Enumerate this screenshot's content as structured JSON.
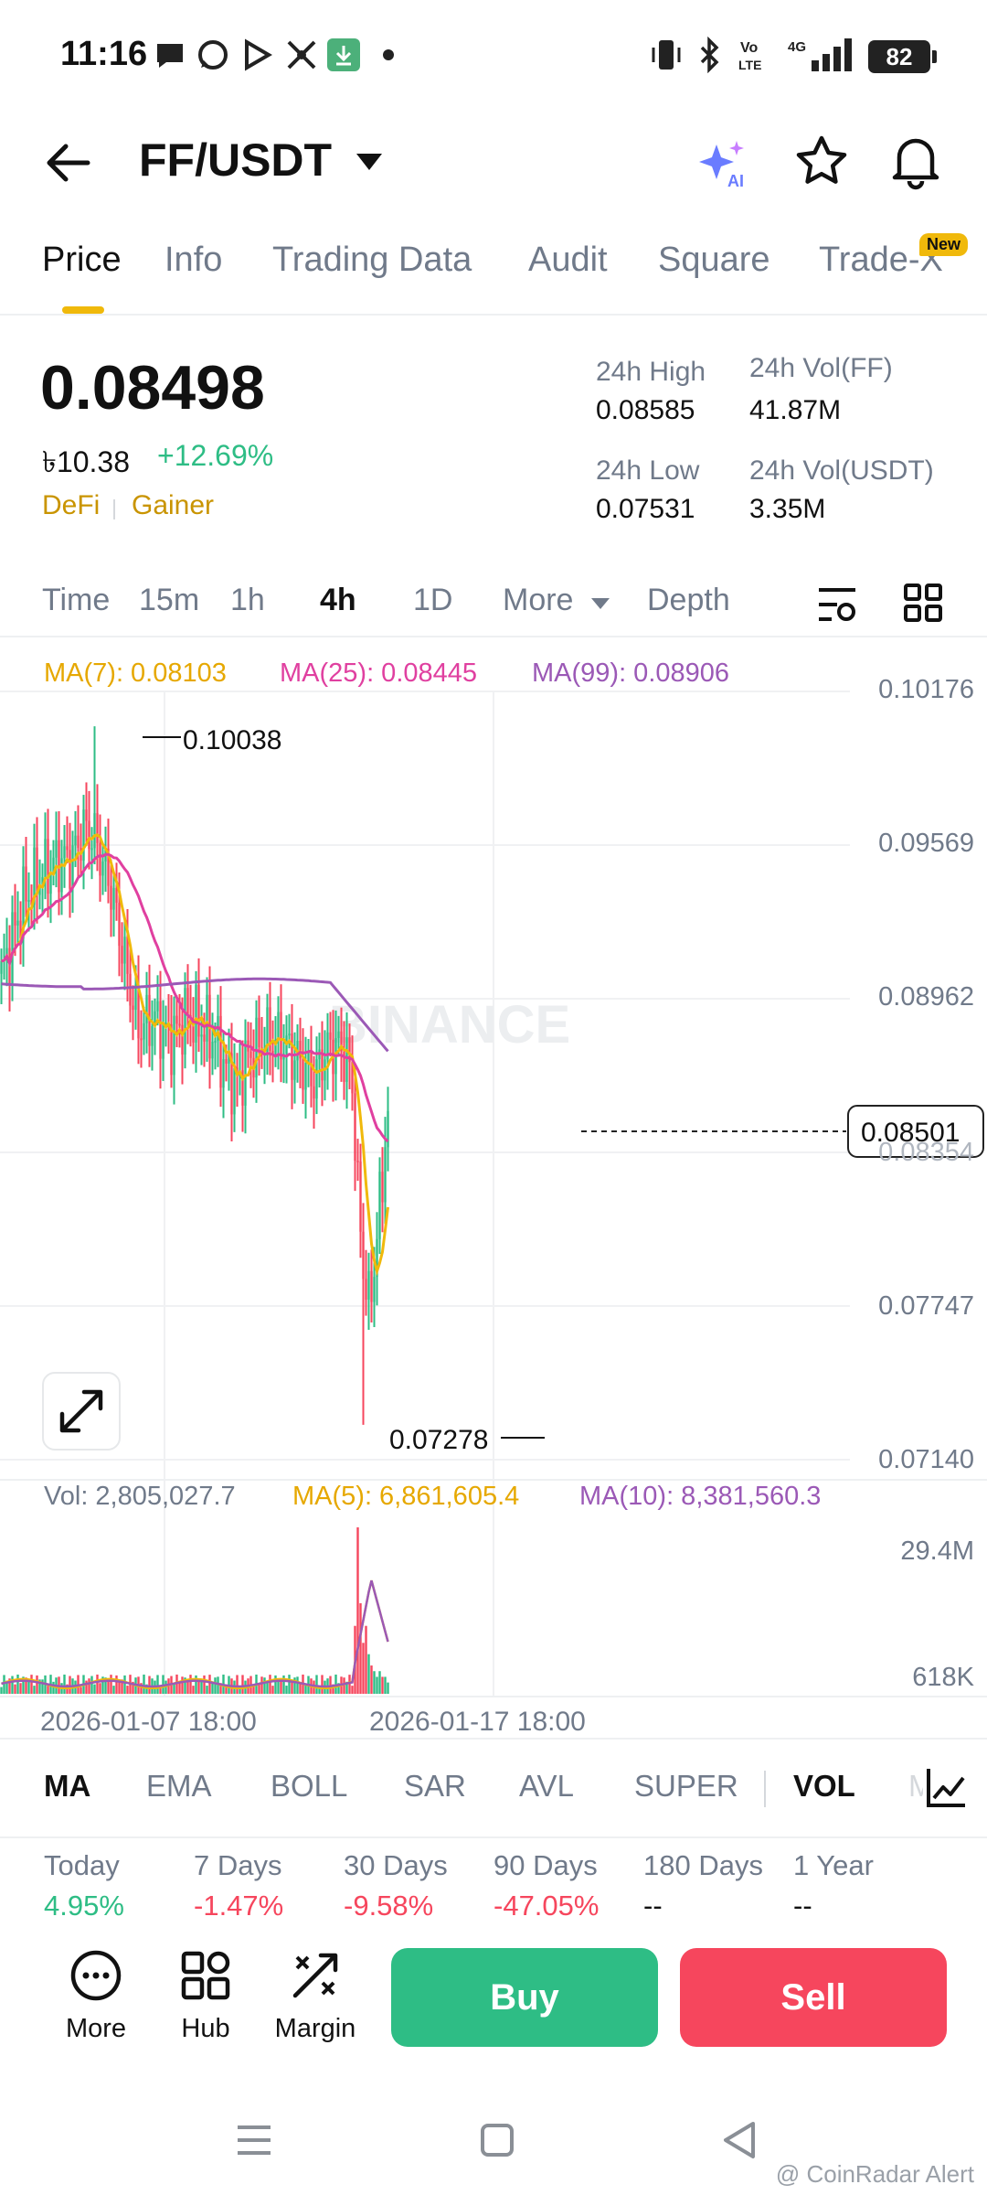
{
  "status_bar": {
    "time": "11:16",
    "battery": "82"
  },
  "header": {
    "pair": "FF/USDT"
  },
  "tabs": [
    {
      "label": "Price"
    },
    {
      "label": "Info"
    },
    {
      "label": "Trading Data"
    },
    {
      "label": "Audit"
    },
    {
      "label": "Square"
    },
    {
      "label": "Trade-X"
    }
  ],
  "new_badge": "New",
  "price": {
    "last": "0.08498",
    "fiat": "৳10.38",
    "change": "+12.69%",
    "tags": [
      "DeFi",
      "Gainer"
    ]
  },
  "stats": {
    "high_label": "24h High",
    "high": "0.08585",
    "low_label": "24h Low",
    "low": "0.07531",
    "vol_ff_label": "24h Vol(FF)",
    "vol_ff": "41.87M",
    "vol_usdt_label": "24h Vol(USDT)",
    "vol_usdt": "3.35M"
  },
  "intervals": [
    "Time",
    "15m",
    "1h",
    "4h",
    "1D",
    "More",
    "Depth"
  ],
  "ma_legend": {
    "ma7": "MA(7): 0.08103",
    "ma25": "MA(25): 0.08445",
    "ma99": "MA(99): 0.08906"
  },
  "y_axis": [
    "0.10176",
    "0.09569",
    "0.08962",
    "0.08354",
    "0.07747",
    "0.07140"
  ],
  "price_marks": {
    "high": "0.10038",
    "low": "0.07278",
    "current": "0.08501"
  },
  "watermark_logo": "BINANCE",
  "vol_legend": {
    "vol": "Vol: 2,805,027.7",
    "ma5": "MA(5): 6,861,605.4",
    "ma10": "MA(10): 8,381,560.3"
  },
  "vol_axis": [
    "29.4M",
    "618K"
  ],
  "dates": [
    "2026-01-07 18:00",
    "2026-01-17 18:00"
  ],
  "indicators": [
    "MA",
    "EMA",
    "BOLL",
    "SAR",
    "AVL",
    "SUPER",
    "VOL",
    "M"
  ],
  "performance": [
    {
      "label": "Today",
      "value": "4.95%"
    },
    {
      "label": "7 Days",
      "value": "-1.47%"
    },
    {
      "label": "30 Days",
      "value": "-9.58%"
    },
    {
      "label": "90 Days",
      "value": "-47.05%"
    },
    {
      "label": "180 Days",
      "value": "--"
    },
    {
      "label": "1 Year",
      "value": "--"
    }
  ],
  "actions": {
    "more": "More",
    "hub": "Hub",
    "margin": "Margin",
    "buy": "Buy",
    "sell": "Sell"
  },
  "watermark": "@ CoinRadar Alert",
  "colors": {
    "up": "#2ebd85",
    "down": "#f6465d",
    "ma7": "#f0b90b",
    "ma25": "#e040a0",
    "ma99": "#9b59b6",
    "accent": "#f0b90b"
  },
  "chart_data": {
    "type": "candlestick",
    "interval": "4h",
    "y_range": [
      0.0714,
      0.10176
    ],
    "high_mark": 0.10038,
    "low_mark": 0.07278,
    "current": 0.08501,
    "volume_range": [
      "618K",
      "29.4M"
    ]
  }
}
